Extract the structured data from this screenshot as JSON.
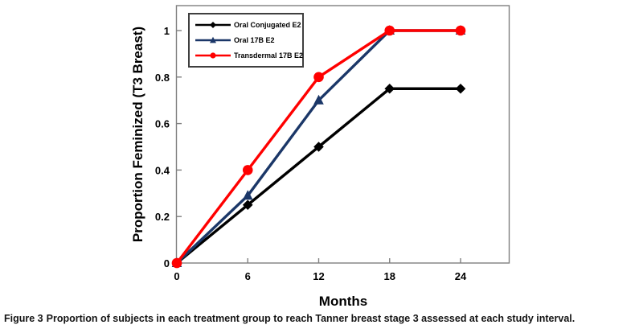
{
  "figure": {
    "caption_label": "Figure 3",
    "caption_text": "Proportion of subjects in each treatment group to reach Tanner breast stage 3 assessed at each study interval."
  },
  "chart_data": {
    "type": "line",
    "title": "",
    "xlabel": "Months",
    "ylabel": "Proportion Feminized (T3 Breast)",
    "x": [
      0,
      6,
      12,
      18,
      24
    ],
    "xtick_labels": [
      "0",
      "6",
      "12",
      "18",
      "24"
    ],
    "yticks": [
      0,
      0.2,
      0.4,
      0.6,
      0.8,
      1
    ],
    "ytick_labels": [
      "0",
      "0.2",
      "0.4",
      "0.6",
      "0.8",
      "1"
    ],
    "xlim": [
      0,
      28
    ],
    "ylim": [
      0,
      1.1
    ],
    "grid": false,
    "legend_position": "top-left-inside",
    "axis_color": "#7f7f7f",
    "series": [
      {
        "name": "Oral Conjugated E2",
        "color": "#000000",
        "marker": "diamond",
        "values": [
          0,
          0.25,
          0.5,
          0.75,
          0.75
        ]
      },
      {
        "name": "Oral 17B E2",
        "color": "#1b3768",
        "marker": "triangle",
        "values": [
          0,
          0.29,
          0.7,
          1,
          1
        ]
      },
      {
        "name": "Transdermal 17B E2",
        "color": "#ff0000",
        "marker": "circle",
        "values": [
          0,
          0.4,
          0.8,
          1,
          1
        ]
      }
    ]
  }
}
